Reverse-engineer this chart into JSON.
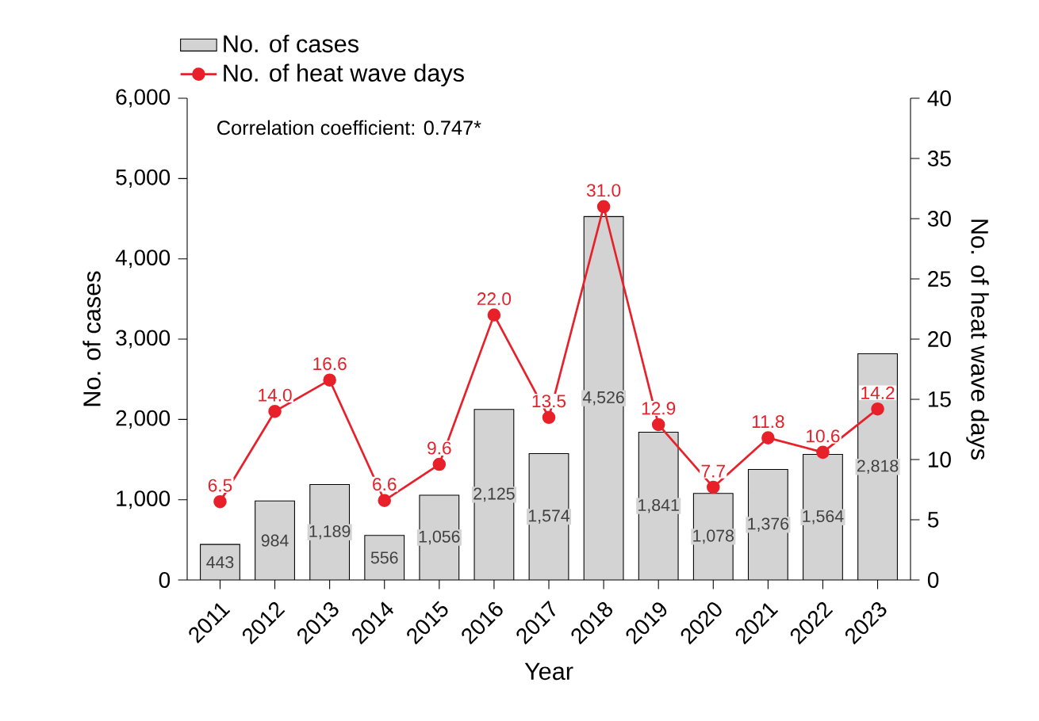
{
  "chart_data": {
    "type": "bar",
    "xlabel": "Year",
    "ylabel": "No. of cases",
    "y2label": "No. of heat wave days",
    "categories": [
      "2011",
      "2012",
      "2013",
      "2014",
      "2015",
      "2016",
      "2017",
      "2018",
      "2019",
      "2020",
      "2021",
      "2022",
      "2023"
    ],
    "series": [
      {
        "name": "No. of cases",
        "color": "#d3d3d3",
        "values": [
          443,
          984,
          1189,
          556,
          1056,
          2125,
          1574,
          4526,
          1841,
          1078,
          1376,
          1564,
          2818
        ],
        "value_labels": [
          "443",
          "984",
          "1,189",
          "556",
          "1,056",
          "2,125",
          "1,574",
          "4,526",
          "1,841",
          "1,078",
          "1,376",
          "1,564",
          "2,818"
        ]
      },
      {
        "name": "No. of heat wave days",
        "type": "line",
        "axis": "y2",
        "color": "#e8202a",
        "marker": "circle",
        "values": [
          6.5,
          14.0,
          16.6,
          6.6,
          9.6,
          22.0,
          13.5,
          31.0,
          12.9,
          7.7,
          11.8,
          10.6,
          14.2
        ],
        "value_labels": [
          "6.5",
          "14.0",
          "16.6",
          "6.6",
          "9.6",
          "22.0",
          "13.5",
          "31.0",
          "12.9",
          "7.7",
          "11.8",
          "10.6",
          "14.2"
        ]
      }
    ],
    "ylim": [
      0,
      6000
    ],
    "yticks": [
      0,
      {
        "value": 1000,
        "label": "1,000"
      },
      {
        "value": 2000,
        "label": "2,000"
      },
      {
        "value": 3000,
        "label": "3,000"
      },
      {
        "value": 4000,
        "label": "4,000"
      },
      {
        "value": 5000,
        "label": "5,000"
      },
      {
        "value": 6000,
        "label": "6,000"
      }
    ],
    "y2lim": [
      0,
      40
    ],
    "y2ticks": [
      0,
      5,
      10,
      15,
      20,
      25,
      30,
      35,
      40
    ],
    "legend": "top left",
    "grid": false,
    "annotations": [
      "Correlation coefficient: 0.747*"
    ]
  }
}
